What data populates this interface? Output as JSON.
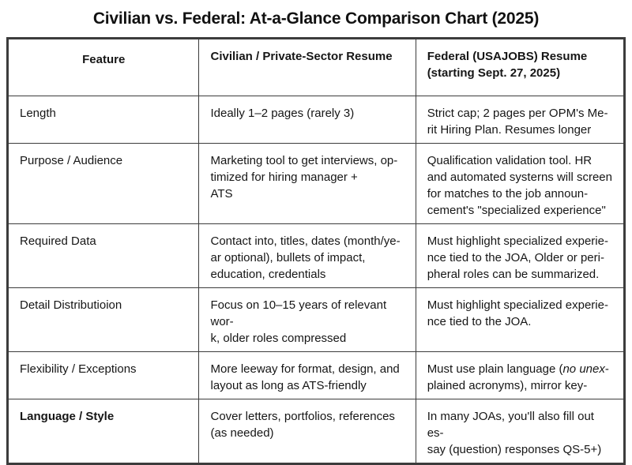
{
  "title": "Civilian vs. Federal: At-a-Glance Comparison Chart (2025)",
  "table": {
    "headers": [
      {
        "text": "Feature"
      },
      {
        "text": "Civilian / Private-Sector Resume"
      },
      {
        "text": "Federal (USAJOBS) Resume\n(starting Sept. 27, 2025)"
      }
    ],
    "rows": [
      {
        "feature": "Length",
        "feature_bold": false,
        "civilian": "Ideally 1–2 pages (rarely 3)",
        "federal": "Strict cap; 2 pages per OPM's Me-\nrit Hiring Plan. Resumes longer"
      },
      {
        "feature": "Purpose / Audience",
        "feature_bold": false,
        "civilian": "Marketing tool to get interviews, op-\ntimized for hiring manager +\nATS",
        "federal": "Qualification validation tool. HR\nand automated systerns will screen\nfor matches to the job announ-\ncement's \"specialized experience\""
      },
      {
        "feature": "Required Data",
        "feature_bold": false,
        "civilian": "Contact into, titles, dates (month/ye-\nar optional), bullets of impact,\neducation, credentials",
        "federal": "Must highlight specialized experie-\nnce tied to the JOA, Older or peri-\npheral roles can be summarized."
      },
      {
        "feature": "Detail Distributioion",
        "feature_bold": false,
        "civilian": "Focus on 10–15 years of relevant wor-\nk, older roles compressed",
        "federal": "Must highlight specialized experie-\nnce tied to the JOA."
      },
      {
        "feature": "Flexibility / Exceptions",
        "feature_bold": false,
        "civilian": "More leeway for format, design, and\nlayout as long as ATS-friendly",
        "federal": [
          {
            "text": "Must use plain language ("
          },
          {
            "text": "no unex",
            "italic": true
          },
          {
            "text": "-\nplained acronyms), mirror key-"
          }
        ]
      },
      {
        "feature": "Language / Style",
        "feature_bold": true,
        "civilian": "Cover letters, portfolios, references\n(as needed)",
        "federal": "In many JOAs, you'll also fill out es-\nsay (question) responses QS-5+)"
      }
    ]
  },
  "colors": {
    "border": "#3c3c3c",
    "text": "#161616",
    "background": "#ffffff"
  }
}
